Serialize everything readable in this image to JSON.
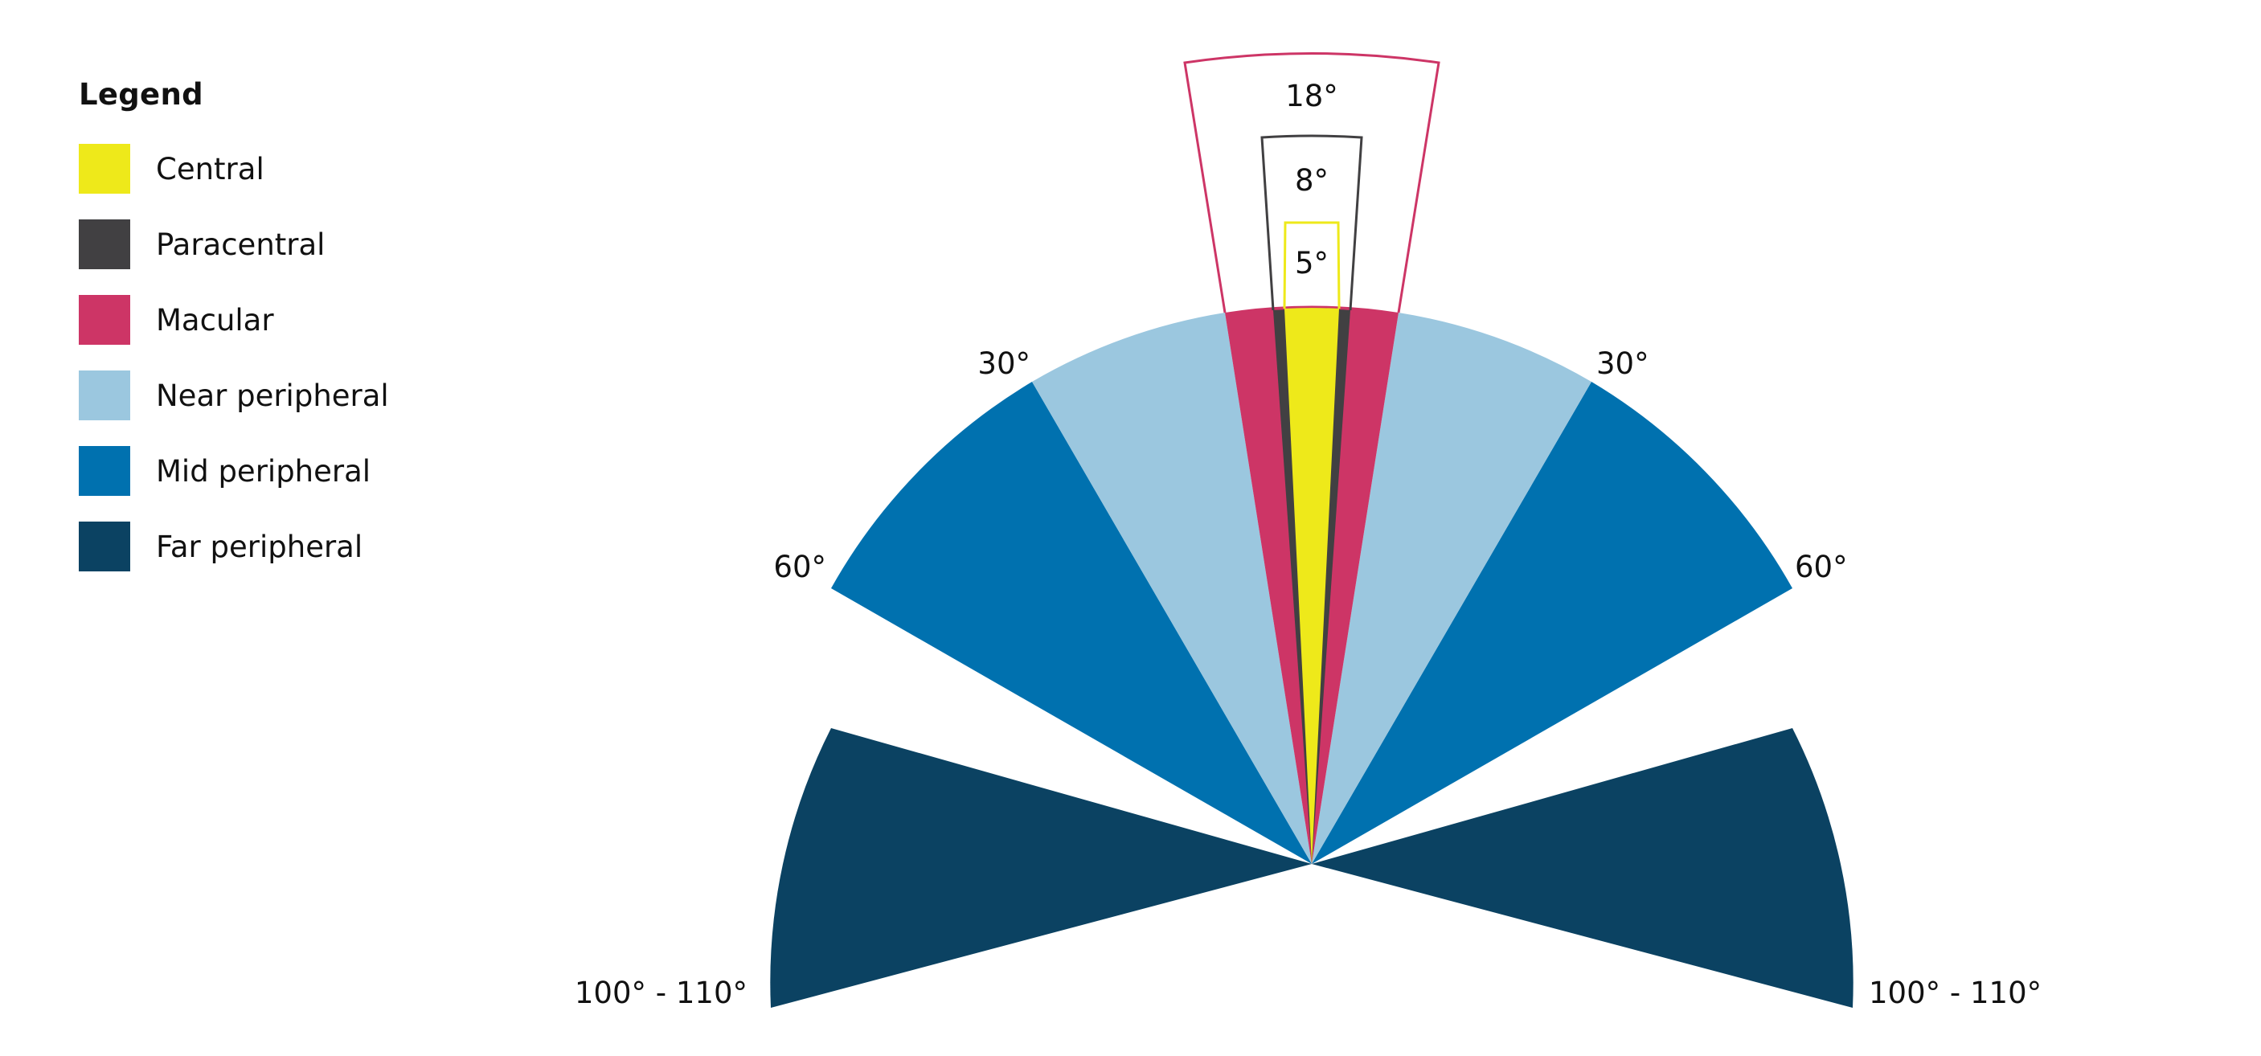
{
  "legend": {
    "title": "Legend",
    "items": [
      {
        "key": "central",
        "label": "Central",
        "color": "#EEE91A"
      },
      {
        "key": "paracentral",
        "label": "Paracentral",
        "color": "#414042"
      },
      {
        "key": "macular",
        "label": "Macular",
        "color": "#CD3566"
      },
      {
        "key": "near",
        "label": "Near peripheral",
        "color": "#9BC7DF"
      },
      {
        "key": "mid",
        "label": "Mid peripheral",
        "color": "#0071AF"
      },
      {
        "key": "far",
        "label": "Far peripheral",
        "color": "#0B4262"
      }
    ]
  },
  "zones": [
    {
      "key": "central",
      "name": "Central",
      "degrees": 5,
      "color": "#EEE91A"
    },
    {
      "key": "paracentral",
      "name": "Paracentral",
      "degrees": 8,
      "color": "#414042"
    },
    {
      "key": "macular",
      "name": "Macular",
      "degrees": 18,
      "color": "#CD3566"
    },
    {
      "key": "near",
      "name": "Near peripheral",
      "degrees": 30,
      "color": "#9BC7DF"
    },
    {
      "key": "mid",
      "name": "Mid peripheral",
      "degrees": 60,
      "color": "#0071AF"
    },
    {
      "key": "far",
      "name": "Far peripheral",
      "degrees": 105,
      "color": "#0B4262"
    }
  ],
  "labels": {
    "deg5": "5°",
    "deg8": "8°",
    "deg18": "18°",
    "deg30_left": "30°",
    "deg30_right": "30°",
    "deg60_left": "60°",
    "deg60_right": "60°",
    "far_left": "100° - 110°",
    "far_right": "100° - 110°"
  }
}
